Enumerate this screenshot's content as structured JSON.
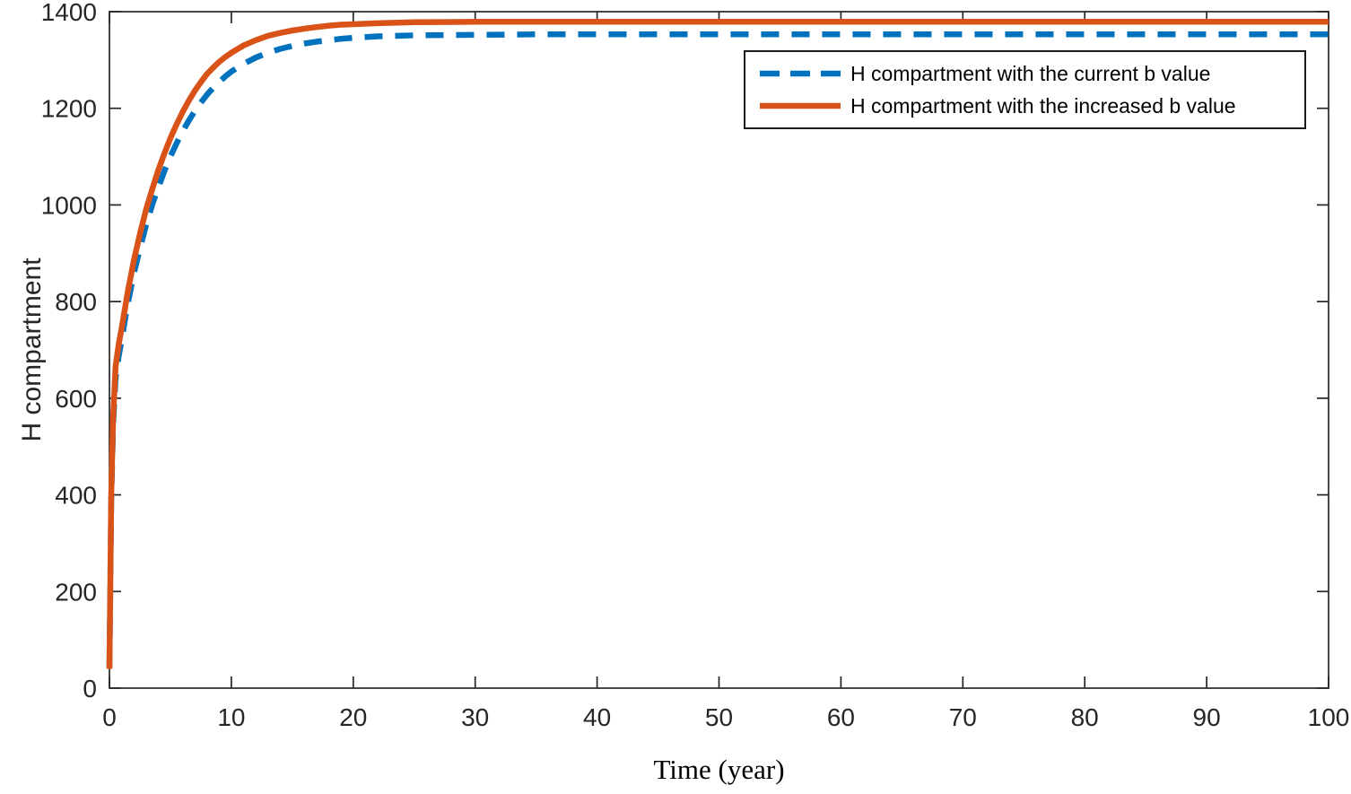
{
  "chart_data": {
    "type": "line",
    "title": "",
    "xlabel": "Time (year)",
    "ylabel": "H compartment",
    "xlim": [
      0,
      100
    ],
    "ylim": [
      0,
      1400
    ],
    "xticks": [
      0,
      10,
      20,
      30,
      40,
      50,
      60,
      70,
      80,
      90,
      100
    ],
    "yticks": [
      0,
      200,
      400,
      600,
      800,
      1000,
      1200,
      1400
    ],
    "grid": false,
    "legend_position": "top-right",
    "x": [
      0,
      0.15,
      0.3,
      0.5,
      0.75,
      1,
      1.5,
      2,
      2.5,
      3,
      3.5,
      4,
      4.5,
      5,
      5.5,
      6,
      6.5,
      7,
      7.5,
      8,
      8.5,
      9,
      9.5,
      10,
      11,
      12,
      13,
      14,
      15,
      16,
      17,
      18,
      19,
      20,
      22,
      25,
      30,
      35,
      40,
      50,
      60,
      70,
      80,
      90,
      100
    ],
    "series": [
      {
        "name": "H compartment with the current b value",
        "color": "#0072BD",
        "line_style": "dashed",
        "values": [
          45,
          390,
          545,
          640,
          685,
          722,
          795,
          858,
          910,
          958,
          1000,
          1036,
          1070,
          1100,
          1127,
          1152,
          1174,
          1194,
          1212,
          1228,
          1242,
          1254,
          1266,
          1276,
          1292,
          1305,
          1315,
          1323,
          1329,
          1334,
          1338,
          1341,
          1344,
          1346,
          1349,
          1351,
          1352,
          1353,
          1353,
          1353,
          1353,
          1353,
          1353,
          1353,
          1353
        ]
      },
      {
        "name": "H compartment with the increased b value",
        "color": "#D95319",
        "line_style": "solid",
        "values": [
          40,
          400,
          560,
          665,
          710,
          745,
          820,
          885,
          940,
          990,
          1032,
          1072,
          1106,
          1138,
          1166,
          1192,
          1215,
          1236,
          1254,
          1271,
          1284,
          1296,
          1306,
          1315,
          1330,
          1341,
          1350,
          1356,
          1361,
          1365,
          1368,
          1371,
          1373,
          1374,
          1376,
          1378,
          1379,
          1379,
          1379,
          1379,
          1379,
          1379,
          1379,
          1379,
          1379
        ]
      }
    ],
    "colors": {
      "axis": "#262626",
      "tick_text": "#262626",
      "label_text": "#262626",
      "xlabel_text": "#000000",
      "legend_border": "#1a1a1a",
      "background": "#ffffff"
    }
  }
}
